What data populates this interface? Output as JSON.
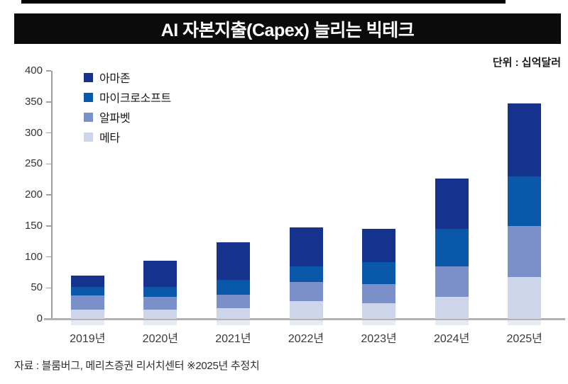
{
  "page": {
    "title": "AI 자본지출(Capex) 늘리는 빅테크",
    "unit_label": "단위 : 십억달러",
    "source_note": "자료 : 블룸버그, 메리츠증권 리서치센터 ※2025년 추정치"
  },
  "colors": {
    "banner": "#0b0b0b",
    "axis": "#9e9e9e",
    "baseline": "#b3b2b0",
    "amazon": "#15328d",
    "microsoft": "#0a58aa",
    "alphabet": "#7b8fc8",
    "meta": "#cdd5ea"
  },
  "chart_data": {
    "type": "bar",
    "stacked": true,
    "title": "AI 자본지출(Capex) 늘리는 빅테크",
    "unit": "십억달러",
    "categories": [
      "2019년",
      "2020년",
      "2021년",
      "2022년",
      "2023년",
      "2024년",
      "2025년"
    ],
    "series": [
      {
        "key": "amazon",
        "name": "아마존",
        "color": "#15328d",
        "values": [
          18,
          43,
          61,
          63,
          53,
          81,
          117
        ]
      },
      {
        "key": "microsoft",
        "name": "마이크로소프트",
        "color": "#0a58aa",
        "values": [
          14,
          16,
          24,
          25,
          36,
          60,
          80
        ]
      },
      {
        "key": "alphabet",
        "name": "알파벳",
        "color": "#7b8fc8",
        "values": [
          23,
          20,
          22,
          31,
          31,
          50,
          82
        ]
      },
      {
        "key": "meta",
        "name": "메타",
        "color": "#cdd5ea",
        "values": [
          15,
          15,
          17,
          29,
          25,
          35,
          68
        ]
      }
    ],
    "stack_order_bottom_to_top": [
      "메타",
      "알파벳",
      "마이크로소프트",
      "아마존"
    ],
    "totals": [
      70,
      94,
      124,
      148,
      145,
      226,
      347
    ],
    "ylim": [
      0,
      400
    ],
    "ytick_step": 50,
    "yticks": [
      0,
      50,
      100,
      150,
      200,
      250,
      300,
      350,
      400
    ],
    "grid": false,
    "legend_position": "top-left"
  }
}
